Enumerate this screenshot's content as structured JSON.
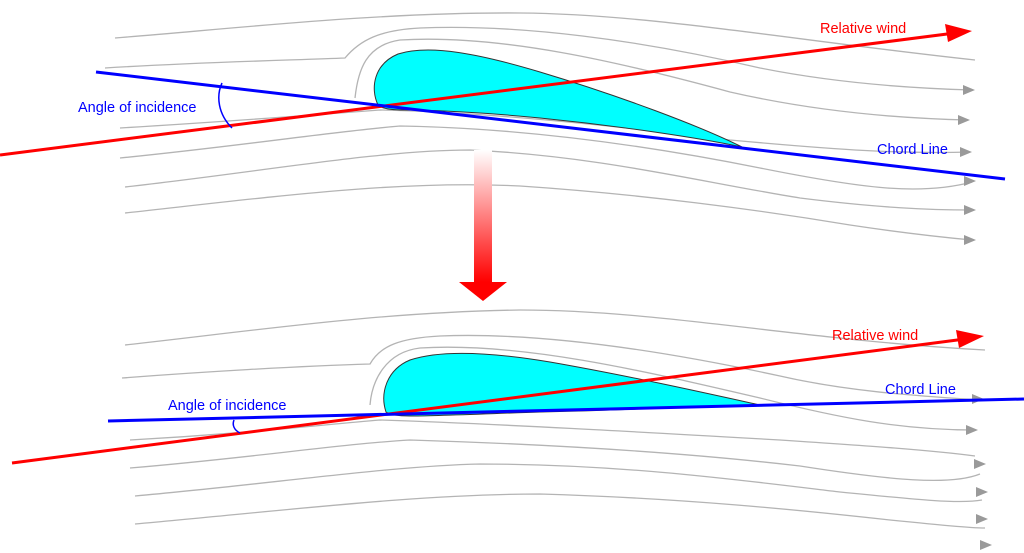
{
  "colors": {
    "airfoil_fill": "#00ffff",
    "relative_wind": "#ff0000",
    "chord_line": "#0000ff",
    "streamlines": "#b4b4b4",
    "transition_arrow": "#ff0000"
  },
  "top": {
    "relative_wind_label": "Relative wind",
    "chord_line_label": "Chord Line",
    "angle_label": "Angle of incidence"
  },
  "bottom": {
    "relative_wind_label": "Relative wind",
    "chord_line_label": "Chord Line",
    "angle_label": "Angle of incidence"
  }
}
